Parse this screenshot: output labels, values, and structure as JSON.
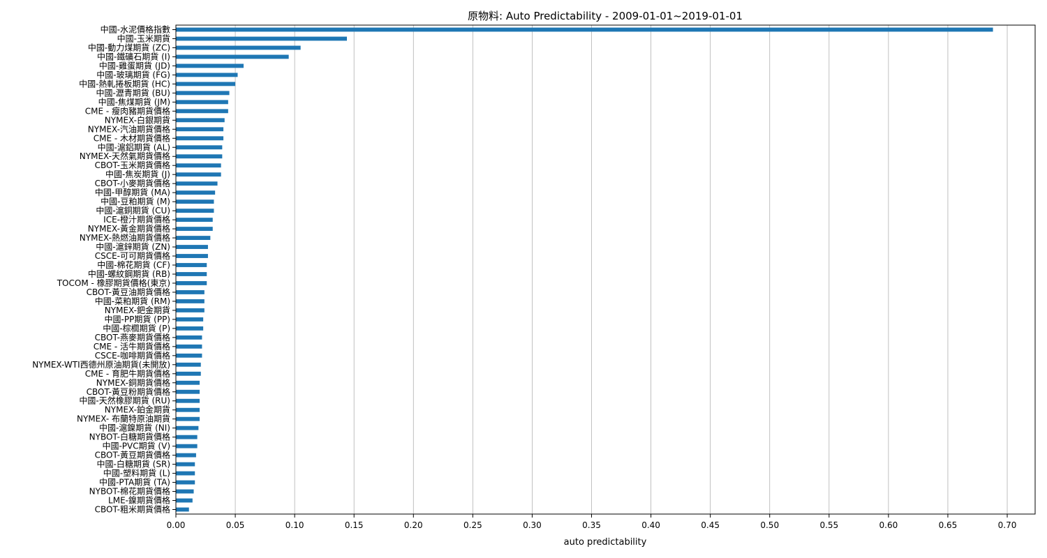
{
  "chart_data": {
    "type": "bar",
    "orientation": "horizontal",
    "title": "原物料: Auto Predictability - 2009-01-01~2019-01-01",
    "xlabel": "auto predictability",
    "ylabel": "",
    "xlim": [
      0,
      0.7235
    ],
    "xticks": [
      0.0,
      0.05,
      0.1,
      0.15,
      0.2,
      0.25,
      0.3,
      0.35,
      0.4,
      0.45,
      0.5,
      0.55,
      0.6,
      0.65,
      0.7
    ],
    "xtick_labels": [
      "0.00",
      "0.05",
      "0.10",
      "0.15",
      "0.20",
      "0.25",
      "0.30",
      "0.35",
      "0.40",
      "0.45",
      "0.50",
      "0.55",
      "0.60",
      "0.65",
      "0.70"
    ],
    "grid": "vertical",
    "bar_color": "#1f77b4",
    "categories": [
      "中國-水泥價格指數",
      "中國-玉米期貨",
      "中國-動力煤期貨 (ZC)",
      "中國-鐵礦石期貨 (I)",
      "中國-雞蛋期貨 (JD)",
      "中國-玻璃期貨 (FG)",
      "中國-熱軋捲板期貨 (HC)",
      "中國-瀝青期貨 (BU)",
      "中國-焦煤期貨 (JM)",
      "CME - 瘦肉豬期貨價格",
      "NYMEX-白銀期貨",
      "NYMEX-汽油期貨價格",
      "CME - 木材期貨價格",
      "中國-滬鋁期貨 (AL)",
      "NYMEX-天然氣期貨價格",
      "CBOT-玉米期貨價格",
      "中國-焦炭期貨 (J)",
      "CBOT-小麥期貨價格",
      "中國-甲醇期貨 (MA)",
      "中國-豆粕期貨 (M)",
      "中國-滬銅期貨 (CU)",
      "ICE-橙汁期貨價格",
      "NYMEX-黃金期貨價格",
      "NYMEX-熱燃油期貨價格",
      "中國-滬鋅期貨 (ZN)",
      "CSCE-可可期貨價格",
      "中國-棉花期貨 (CF)",
      "中國-螺紋鋼期貨 (RB)",
      "TOCOM - 橡膠期貨價格(東京)",
      "CBOT-黃豆油期貨價格",
      "中國-菜粕期貨 (RM)",
      "NYMEX-鈀金期貨",
      "中國-PP期貨 (PP)",
      "中國-棕櫚期貨 (P)",
      "CBOT-燕麥期貨價格",
      "CME - 活牛期貨價格",
      "CSCE-咖啡期貨價格",
      "NYMEX-WTI西德州原油期貨(未開放)",
      "CME - 育肥牛期貨價格",
      "NYMEX-銅期貨價格",
      "CBOT-黃豆粉期貨價格",
      "中國-天然橡膠期貨 (RU)",
      "NYMEX-鉑金期貨",
      "NYMEX- 布蘭特原油期貨",
      "中國-滬鎳期貨 (NI)",
      "NYBOT-白糖期貨價格",
      "中國-PVC期貨 (V)",
      "CBOT-黃豆期貨價格",
      "中國-白糖期貨 (SR)",
      "中國-塑料期貨 (L)",
      "中國-PTA期貨 (TA)",
      "NYBOT-棉花期貨價格",
      "LME-鎳期貨價格",
      "CBOT-粗米期貨價格"
    ],
    "values": [
      0.688,
      0.144,
      0.105,
      0.095,
      0.057,
      0.052,
      0.05,
      0.045,
      0.044,
      0.044,
      0.041,
      0.04,
      0.04,
      0.039,
      0.039,
      0.038,
      0.038,
      0.035,
      0.033,
      0.032,
      0.032,
      0.031,
      0.031,
      0.029,
      0.027,
      0.027,
      0.026,
      0.026,
      0.026,
      0.024,
      0.024,
      0.024,
      0.023,
      0.023,
      0.022,
      0.022,
      0.022,
      0.021,
      0.021,
      0.02,
      0.02,
      0.02,
      0.02,
      0.02,
      0.019,
      0.018,
      0.018,
      0.017,
      0.016,
      0.016,
      0.016,
      0.015,
      0.014,
      0.011
    ]
  }
}
